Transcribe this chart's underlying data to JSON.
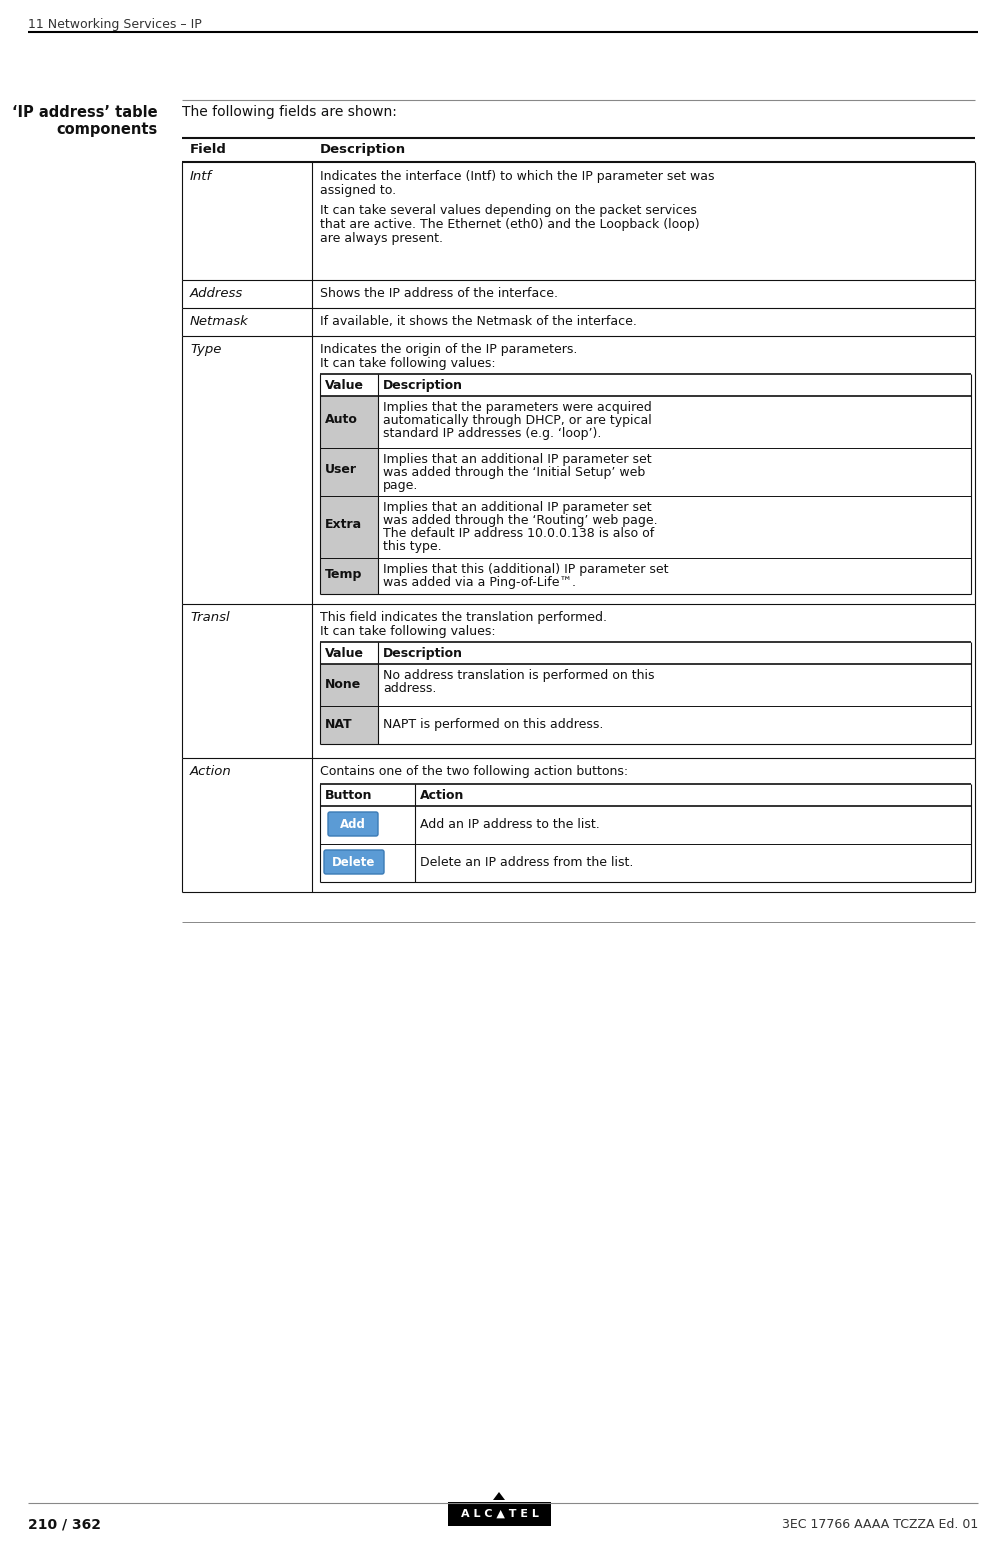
{
  "page_header": "11 Networking Services – IP",
  "page_footer_left": "210 / 362",
  "page_footer_right": "3EC 17766 AAAA TCZZA Ed. 01",
  "section_title_line1": "‘IP address’ table",
  "section_title_line2": "components",
  "intro_text": "The following fields are shown:",
  "bg_color": "#ffffff",
  "field_col_header": "Field",
  "desc_col_header": "Description",
  "row_intf_field": "Intf",
  "row_intf_desc1": "Indicates the interface (Intf) to which the IP parameter set was",
  "row_intf_desc2": "assigned to.",
  "row_intf_desc3": "It can take several values depending on the packet services",
  "row_intf_desc4": "that are active. The Ethernet (eth0) and the Loopback (loop)",
  "row_intf_desc5": "are always present.",
  "row_address_field": "Address",
  "row_address_desc": "Shows the IP address of the interface.",
  "row_netmask_field": "Netmask",
  "row_netmask_desc": "If available, it shows the Netmask of the interface.",
  "row_type_field": "Type",
  "row_type_desc1": "Indicates the origin of the IP parameters.",
  "row_type_desc2": "It can take following values:",
  "type_val_header": "Value",
  "type_desc_header": "Description",
  "type_auto_val": "Auto",
  "type_auto_desc1": "Implies that the parameters were acquired",
  "type_auto_desc2": "automatically through DHCP, or are typical",
  "type_auto_desc3": "standard IP addresses (e.g. ‘loop’).",
  "type_user_val": "User",
  "type_user_desc1": "Implies that an additional IP parameter set",
  "type_user_desc2": "was added through the ‘Initial Setup’ web",
  "type_user_desc3": "page.",
  "type_extra_val": "Extra",
  "type_extra_desc1": "Implies that an additional IP parameter set",
  "type_extra_desc2": "was added through the ‘Routing’ web page.",
  "type_extra_desc3": "The default IP address 10.0.0.138 is also of",
  "type_extra_desc4": "this type.",
  "type_temp_val": "Temp",
  "type_temp_desc1": "Implies that this (additional) IP parameter set",
  "type_temp_desc2": "was added via a Ping-of-Life™.",
  "row_transl_field": "Transl",
  "row_transl_desc1": "This field indicates the translation performed.",
  "row_transl_desc2": "It can take following values:",
  "transl_val_header": "Value",
  "transl_desc_header": "Description",
  "transl_none_val": "None",
  "transl_none_desc1": "No address translation is performed on this",
  "transl_none_desc2": "address.",
  "transl_nat_val": "NAT",
  "transl_nat_desc": "NAPT is performed on this address.",
  "row_action_field": "Action",
  "row_action_desc": "Contains one of the two following action buttons:",
  "action_btn_header": "Button",
  "action_act_header": "Action",
  "action_add_btn": "Add",
  "action_add_desc": "Add an IP address to the list.",
  "action_del_btn": "Delete",
  "action_del_desc": "Delete an IP address from the list.",
  "btn_add_color": "#5b9bd5",
  "btn_del_color": "#5b9bd5",
  "gray_cell": "#c8c8c8"
}
